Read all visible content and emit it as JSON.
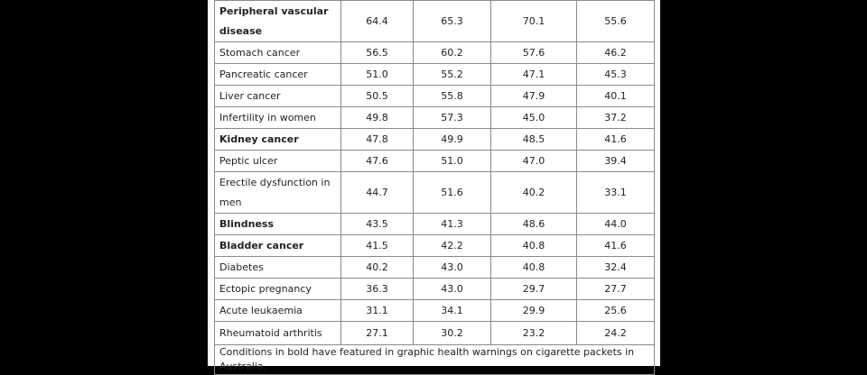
{
  "rows": [
    {
      "name": "Peripheral vascular disease",
      "bold": true,
      "values": [
        "64.4",
        "65.3",
        "70.1",
        "55.6"
      ]
    },
    {
      "name": "Stomach cancer",
      "bold": false,
      "values": [
        "56.5",
        "60.2",
        "57.6",
        "46.2"
      ]
    },
    {
      "name": "Pancreatic cancer",
      "bold": false,
      "values": [
        "51.0",
        "55.2",
        "47.1",
        "45.3"
      ]
    },
    {
      "name": "Liver cancer",
      "bold": false,
      "values": [
        "50.5",
        "55.8",
        "47.9",
        "40.1"
      ]
    },
    {
      "name": "Infertility in women",
      "bold": false,
      "values": [
        "49.8",
        "57.3",
        "45.0",
        "37.2"
      ]
    },
    {
      "name": "Kidney cancer",
      "bold": true,
      "values": [
        "47.8",
        "49.9",
        "48.5",
        "41.6"
      ]
    },
    {
      "name": "Peptic ulcer",
      "bold": false,
      "values": [
        "47.6",
        "51.0",
        "47.0",
        "39.4"
      ]
    },
    {
      "name": "Erectile dysfunction in men",
      "bold": false,
      "values": [
        "44.7",
        "51.6",
        "40.2",
        "33.1"
      ]
    },
    {
      "name": "Blindness",
      "bold": true,
      "values": [
        "43.5",
        "41.3",
        "48.6",
        "44.0"
      ]
    },
    {
      "name": "Bladder cancer",
      "bold": true,
      "values": [
        "41.5",
        "42.2",
        "40.8",
        "41.6"
      ]
    },
    {
      "name": "Diabetes",
      "bold": false,
      "values": [
        "40.2",
        "43.0",
        "40.8",
        "32.4"
      ]
    },
    {
      "name": "Ectopic pregnancy",
      "bold": false,
      "values": [
        "36.3",
        "43.0",
        "29.7",
        "27.7"
      ]
    },
    {
      "name": "Acute leukaemia",
      "bold": false,
      "values": [
        "31.1",
        "34.1",
        "29.9",
        "25.6"
      ]
    },
    {
      "name": "Rheumatoid arthritis",
      "bold": false,
      "values": [
        "27.1",
        "30.2",
        "23.2",
        "24.2"
      ]
    }
  ],
  "footnote": "Conditions in bold have featured in graphic health warnings on cigarette packets in Australia."
}
